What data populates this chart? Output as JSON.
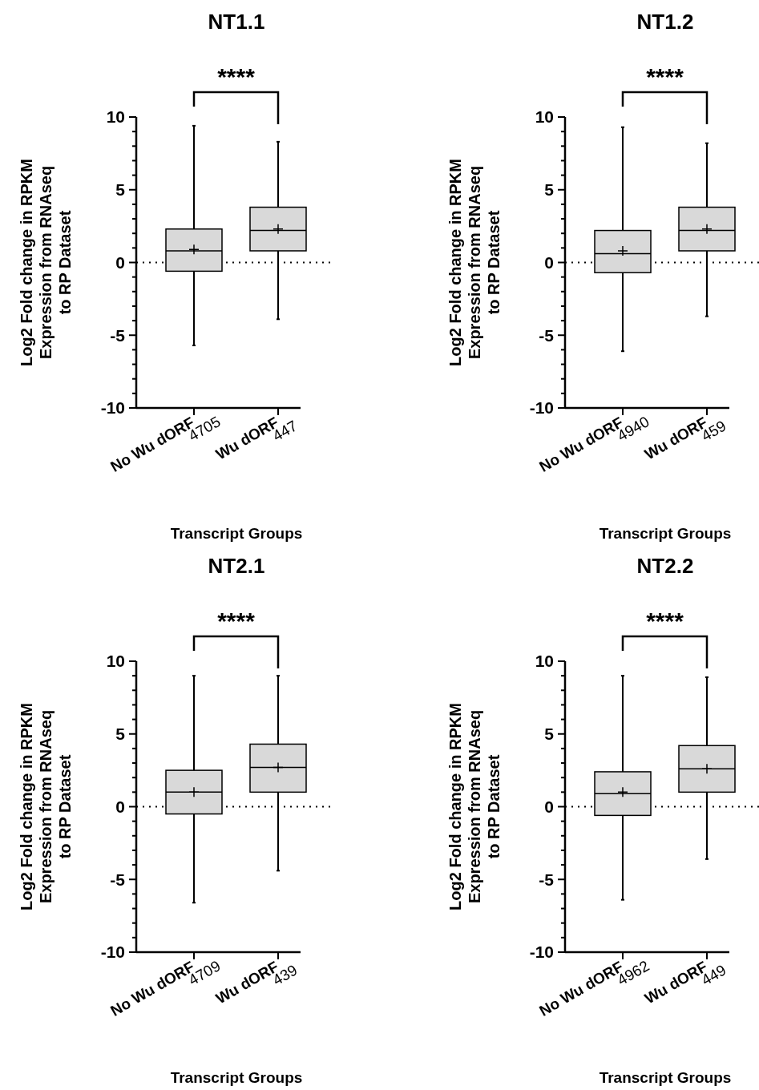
{
  "chart_data": [
    {
      "type": "box",
      "title": "NT1.1",
      "xlabel": "Transcript Groups",
      "ylabel": "Log2 Fold change in RPKM\nExpression from RNAseq\nto RP Dataset",
      "categories": [
        "No Wu dORF",
        "Wu dORF"
      ],
      "ylim": [
        -10,
        10
      ],
      "yticks": [
        -10,
        {
          "value": -9,
          "label": null
        },
        {
          "value": -8,
          "label": null
        },
        {
          "value": -7,
          "label": null
        },
        {
          "value": -6,
          "label": null
        },
        -5,
        {
          "value": -4,
          "label": null
        },
        {
          "value": -3,
          "label": null
        },
        {
          "value": -2,
          "label": null
        },
        {
          "value": -1,
          "label": null
        },
        0,
        {
          "value": 1,
          "label": null
        },
        {
          "value": 2,
          "label": null
        },
        {
          "value": 3,
          "label": null
        },
        {
          "value": 4,
          "label": null
        },
        5,
        {
          "value": 6,
          "label": null
        },
        {
          "value": 7,
          "label": null
        },
        {
          "value": 8,
          "label": null
        },
        {
          "value": 9,
          "label": null
        },
        10
      ],
      "color": "#d9d9d9",
      "boxes": [
        {
          "low": -5.7,
          "q1": -0.6,
          "median": 0.8,
          "q3": 2.3,
          "high": 9.4,
          "mean": 0.9
        },
        {
          "low": -3.9,
          "q1": 0.8,
          "median": 2.2,
          "q3": 3.8,
          "high": 8.3,
          "mean": 2.3
        }
      ],
      "ref_lines": [
        {
          "axis": "y",
          "value": 0,
          "line_style": "dotted"
        }
      ],
      "annotations": [
        "****",
        "4705",
        "447"
      ]
    },
    {
      "type": "box",
      "title": "NT1.2",
      "xlabel": "Transcript Groups",
      "ylabel": "Log2 Fold change in RPKM\nExpression from RNAseq\nto RP Dataset",
      "categories": [
        "No Wu dORF",
        "Wu dORF"
      ],
      "ylim": [
        -10,
        10
      ],
      "yticks": [
        -10,
        {
          "value": -9,
          "label": null
        },
        {
          "value": -8,
          "label": null
        },
        {
          "value": -7,
          "label": null
        },
        {
          "value": -6,
          "label": null
        },
        -5,
        {
          "value": -4,
          "label": null
        },
        {
          "value": -3,
          "label": null
        },
        {
          "value": -2,
          "label": null
        },
        {
          "value": -1,
          "label": null
        },
        0,
        {
          "value": 1,
          "label": null
        },
        {
          "value": 2,
          "label": null
        },
        {
          "value": 3,
          "label": null
        },
        {
          "value": 4,
          "label": null
        },
        5,
        {
          "value": 6,
          "label": null
        },
        {
          "value": 7,
          "label": null
        },
        {
          "value": 8,
          "label": null
        },
        {
          "value": 9,
          "label": null
        },
        10
      ],
      "color": "#d9d9d9",
      "boxes": [
        {
          "low": -6.1,
          "q1": -0.7,
          "median": 0.6,
          "q3": 2.2,
          "high": 9.3,
          "mean": 0.8
        },
        {
          "low": -3.7,
          "q1": 0.8,
          "median": 2.2,
          "q3": 3.8,
          "high": 8.2,
          "mean": 2.3
        }
      ],
      "ref_lines": [
        {
          "axis": "y",
          "value": 0,
          "line_style": "dotted"
        }
      ],
      "annotations": [
        "****",
        "4940",
        "459"
      ]
    },
    {
      "type": "box",
      "title": "NT2.1",
      "xlabel": "Transcript Groups",
      "ylabel": "Log2 Fold change in RPKM\nExpression from RNAseq\nto RP Dataset",
      "categories": [
        "No Wu dORF",
        "Wu dORF"
      ],
      "ylim": [
        -10,
        10
      ],
      "yticks": [
        -10,
        {
          "value": -9,
          "label": null
        },
        {
          "value": -8,
          "label": null
        },
        {
          "value": -7,
          "label": null
        },
        {
          "value": -6,
          "label": null
        },
        -5,
        {
          "value": -4,
          "label": null
        },
        {
          "value": -3,
          "label": null
        },
        {
          "value": -2,
          "label": null
        },
        {
          "value": -1,
          "label": null
        },
        0,
        {
          "value": 1,
          "label": null
        },
        {
          "value": 2,
          "label": null
        },
        {
          "value": 3,
          "label": null
        },
        {
          "value": 4,
          "label": null
        },
        5,
        {
          "value": 6,
          "label": null
        },
        {
          "value": 7,
          "label": null
        },
        {
          "value": 8,
          "label": null
        },
        {
          "value": 9,
          "label": null
        },
        10
      ],
      "color": "#d9d9d9",
      "boxes": [
        {
          "low": -6.6,
          "q1": -0.5,
          "median": 1.0,
          "q3": 2.5,
          "high": 9.0,
          "mean": 1.0
        },
        {
          "low": -4.4,
          "q1": 1.0,
          "median": 2.7,
          "q3": 4.3,
          "high": 9.0,
          "mean": 2.7
        }
      ],
      "ref_lines": [
        {
          "axis": "y",
          "value": 0,
          "line_style": "dotted"
        }
      ],
      "annotations": [
        "****",
        "4709",
        "439"
      ]
    },
    {
      "type": "box",
      "title": "NT2.2",
      "xlabel": "Transcript Groups",
      "ylabel": "Log2 Fold change in RPKM\nExpression from RNAseq\nto RP Dataset",
      "categories": [
        "No Wu dORF",
        "Wu dORF"
      ],
      "ylim": [
        -10,
        10
      ],
      "yticks": [
        -10,
        {
          "value": -9,
          "label": null
        },
        {
          "value": -8,
          "label": null
        },
        {
          "value": -7,
          "label": null
        },
        {
          "value": -6,
          "label": null
        },
        -5,
        {
          "value": -4,
          "label": null
        },
        {
          "value": -3,
          "label": null
        },
        {
          "value": -2,
          "label": null
        },
        {
          "value": -1,
          "label": null
        },
        0,
        {
          "value": 1,
          "label": null
        },
        {
          "value": 2,
          "label": null
        },
        {
          "value": 3,
          "label": null
        },
        {
          "value": 4,
          "label": null
        },
        5,
        {
          "value": 6,
          "label": null
        },
        {
          "value": 7,
          "label": null
        },
        {
          "value": 8,
          "label": null
        },
        {
          "value": 9,
          "label": null
        },
        10
      ],
      "color": "#d9d9d9",
      "boxes": [
        {
          "low": -6.4,
          "q1": -0.6,
          "median": 0.9,
          "q3": 2.4,
          "high": 9.0,
          "mean": 1.0
        },
        {
          "low": -3.6,
          "q1": 1.0,
          "median": 2.6,
          "q3": 4.2,
          "high": 8.9,
          "mean": 2.6
        }
      ],
      "ref_lines": [
        {
          "axis": "y",
          "value": 0,
          "line_style": "dotted"
        }
      ],
      "annotations": [
        "****",
        "4962",
        "449"
      ]
    }
  ]
}
